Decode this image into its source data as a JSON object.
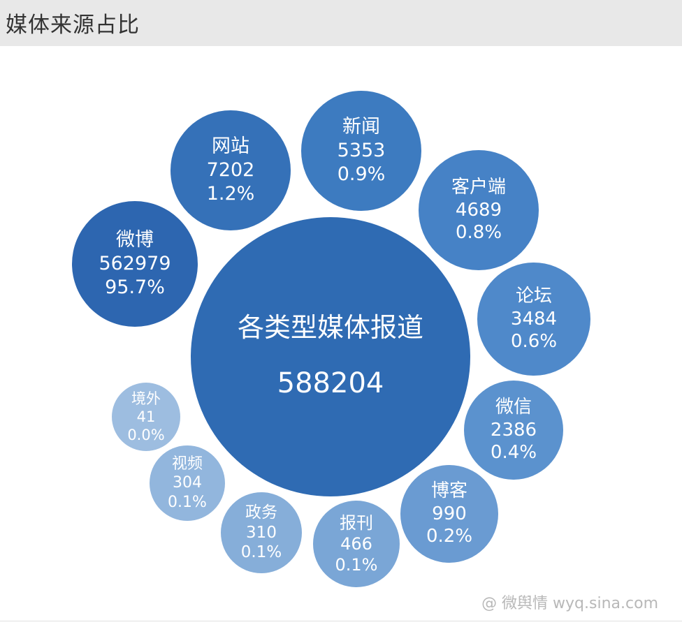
{
  "header": {
    "title": "媒体来源占比"
  },
  "chart_data": {
    "type": "bubble",
    "title": "媒体来源占比",
    "center": {
      "label": "各类型媒体报道",
      "value": 588204
    },
    "items": [
      {
        "name": "微博",
        "value": 562979,
        "percent": "95.7%"
      },
      {
        "name": "网站",
        "value": 7202,
        "percent": "1.2%"
      },
      {
        "name": "新闻",
        "value": 5353,
        "percent": "0.9%"
      },
      {
        "name": "客户端",
        "value": 4689,
        "percent": "0.8%"
      },
      {
        "name": "论坛",
        "value": 3484,
        "percent": "0.6%"
      },
      {
        "name": "微信",
        "value": 2386,
        "percent": "0.4%"
      },
      {
        "name": "博客",
        "value": 990,
        "percent": "0.2%"
      },
      {
        "name": "报刊",
        "value": 466,
        "percent": "0.1%"
      },
      {
        "name": "政务",
        "value": 310,
        "percent": "0.1%"
      },
      {
        "name": "视频",
        "value": 304,
        "percent": "0.1%"
      },
      {
        "name": "境外",
        "value": 41,
        "percent": "0.0%"
      }
    ],
    "colors": {
      "center": "#2f6bb3",
      "微博": "#2d66b0",
      "网站": "#3571b8",
      "新闻": "#3d7bc0",
      "客户端": "#4682c6",
      "论坛": "#4f89ca",
      "微信": "#5b92ce",
      "博客": "#6a9bd2",
      "报刊": "#7aa6d6",
      "政务": "#86aed9",
      "视频": "#92b6dd",
      "境外": "#9dbde0"
    }
  },
  "watermark": "@ 微舆情 wyq.sina.com"
}
